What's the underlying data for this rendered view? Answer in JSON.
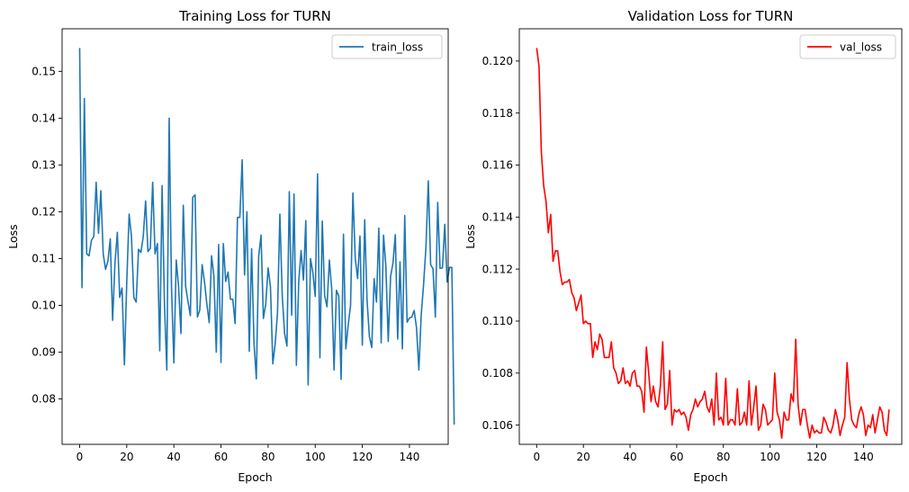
{
  "chart_data": [
    {
      "type": "line",
      "title": "Training Loss for TURN",
      "xlabel": "Epoch",
      "ylabel": "Loss",
      "xlim": [
        -7.45,
        156.45
      ],
      "ylim": [
        0.0703,
        0.1591
      ],
      "xticks": [
        0,
        20,
        40,
        60,
        80,
        100,
        120,
        140
      ],
      "yticks": [
        0.08,
        0.09,
        0.1,
        0.11,
        0.12,
        0.13,
        0.14,
        0.15
      ],
      "xtick_labels": [
        "0",
        "20",
        "40",
        "60",
        "80",
        "100",
        "120",
        "140"
      ],
      "ytick_labels": [
        "0.08",
        "0.09",
        "0.10",
        "0.11",
        "0.12",
        "0.13",
        "0.14",
        "0.15"
      ],
      "grid": false,
      "legend_position": "top-right",
      "series": [
        {
          "name": "train_loss",
          "color": "#1f77b4",
          "values": [
            0.155,
            0.1038,
            0.1442,
            0.111,
            0.1106,
            0.1139,
            0.1147,
            0.1263,
            0.1154,
            0.1245,
            0.111,
            0.1077,
            0.1095,
            0.1142,
            0.0968,
            0.1091,
            0.1156,
            0.1017,
            0.1037,
            0.0873,
            0.105,
            0.1195,
            0.1147,
            0.1017,
            0.1007,
            0.112,
            0.1113,
            0.1147,
            0.1223,
            0.1115,
            0.1122,
            0.1263,
            0.111,
            0.1132,
            0.0903,
            0.1256,
            0.1003,
            0.0862,
            0.14,
            0.1037,
            0.0877,
            0.1097,
            0.104,
            0.094,
            0.1214,
            0.104,
            0.1008,
            0.0978,
            0.1231,
            0.1236,
            0.0975,
            0.099,
            0.1087,
            0.105,
            0.1003,
            0.0963,
            0.1106,
            0.1062,
            0.09,
            0.113,
            0.0878,
            0.1132,
            0.1051,
            0.1071,
            0.1013,
            0.1013,
            0.0961,
            0.1188,
            0.1188,
            0.1311,
            0.1065,
            0.12,
            0.0902,
            0.1121,
            0.0921,
            0.0843,
            0.1105,
            0.115,
            0.0972,
            0.1003,
            0.108,
            0.104,
            0.0875,
            0.0918,
            0.0985,
            0.1195,
            0.1021,
            0.094,
            0.0913,
            0.1243,
            0.0979,
            0.1238,
            0.0872,
            0.105,
            0.1117,
            0.1054,
            0.1181,
            0.083,
            0.11,
            0.107,
            0.1019,
            0.1281,
            0.0888,
            0.118,
            0.1021,
            0.0997,
            0.1097,
            0.1035,
            0.0862,
            0.1032,
            0.102,
            0.0842,
            0.1152,
            0.0907,
            0.0958,
            0.1,
            0.124,
            0.11,
            0.1057,
            0.1148,
            0.0915,
            0.1183,
            0.1011,
            0.0933,
            0.091,
            0.1057,
            0.1007,
            0.1165,
            0.092,
            0.115,
            0.1083,
            0.0923,
            0.1062,
            0.109,
            0.1151,
            0.0928,
            0.1093,
            0.0907,
            0.1192,
            0.0964,
            0.0973,
            0.0975,
            0.0989,
            0.0952,
            0.0862,
            0.098,
            0.1045,
            0.1124,
            0.1266,
            0.1087,
            0.1078,
            0.0975,
            0.122,
            0.1079,
            0.108,
            0.1173,
            0.105,
            0.1081,
            0.1081,
            0.0745
          ]
        }
      ]
    },
    {
      "type": "line",
      "title": "Validation Loss for TURN",
      "xlabel": "Epoch",
      "ylabel": "Loss",
      "xlim": [
        -7.45,
        156.45
      ],
      "ylim": [
        0.10526,
        0.12124
      ],
      "xticks": [
        0,
        20,
        40,
        60,
        80,
        100,
        120,
        140
      ],
      "yticks": [
        0.106,
        0.108,
        0.11,
        0.112,
        0.114,
        0.116,
        0.118,
        0.12
      ],
      "xtick_labels": [
        "0",
        "20",
        "40",
        "60",
        "80",
        "100",
        "120",
        "140"
      ],
      "ytick_labels": [
        "0.106",
        "0.108",
        "0.110",
        "0.112",
        "0.114",
        "0.116",
        "0.118",
        "0.120"
      ],
      "grid": false,
      "legend_position": "top-right",
      "series": [
        {
          "name": "val_loss",
          "color": "#ff0000",
          "values": [
            0.1205,
            0.1198,
            0.1165,
            0.1152,
            0.1146,
            0.1134,
            0.1141,
            0.1123,
            0.1127,
            0.1127,
            0.1119,
            0.1114,
            0.1115,
            0.1115,
            0.1116,
            0.1111,
            0.1109,
            0.1104,
            0.1107,
            0.111,
            0.1099,
            0.11,
            0.1099,
            0.1099,
            0.1086,
            0.1092,
            0.1089,
            0.1095,
            0.1093,
            0.1086,
            0.1086,
            0.1086,
            0.1092,
            0.1082,
            0.108,
            0.1076,
            0.1077,
            0.1082,
            0.1076,
            0.1077,
            0.1075,
            0.108,
            0.1081,
            0.1075,
            0.1075,
            0.1073,
            0.1065,
            0.109,
            0.108,
            0.1069,
            0.1075,
            0.1069,
            0.1067,
            0.1075,
            0.1092,
            0.1066,
            0.1068,
            0.1081,
            0.106,
            0.1066,
            0.1065,
            0.1066,
            0.1064,
            0.1065,
            0.1063,
            0.1058,
            0.1064,
            0.1066,
            0.107,
            0.1067,
            0.1069,
            0.107,
            0.1073,
            0.1067,
            0.1065,
            0.107,
            0.106,
            0.108,
            0.1062,
            0.1063,
            0.106,
            0.1078,
            0.106,
            0.1062,
            0.1062,
            0.106,
            0.1074,
            0.106,
            0.1061,
            0.1065,
            0.106,
            0.1077,
            0.106,
            0.1067,
            0.1075,
            0.1058,
            0.106,
            0.1068,
            0.1066,
            0.106,
            0.1061,
            0.1062,
            0.108,
            0.1065,
            0.1062,
            0.1055,
            0.1065,
            0.1062,
            0.1062,
            0.1072,
            0.1069,
            0.1093,
            0.1068,
            0.106,
            0.1066,
            0.1066,
            0.106,
            0.1055,
            0.106,
            0.1057,
            0.1058,
            0.1057,
            0.1057,
            0.1063,
            0.1061,
            0.1058,
            0.1057,
            0.106,
            0.1066,
            0.1062,
            0.1056,
            0.106,
            0.1063,
            0.1084,
            0.107,
            0.1062,
            0.106,
            0.1059,
            0.1064,
            0.1067,
            0.1064,
            0.1056,
            0.106,
            0.1059,
            0.1064,
            0.1057,
            0.1062,
            0.1067,
            0.1065,
            0.1058,
            0.1056,
            0.1066
          ]
        }
      ]
    }
  ]
}
